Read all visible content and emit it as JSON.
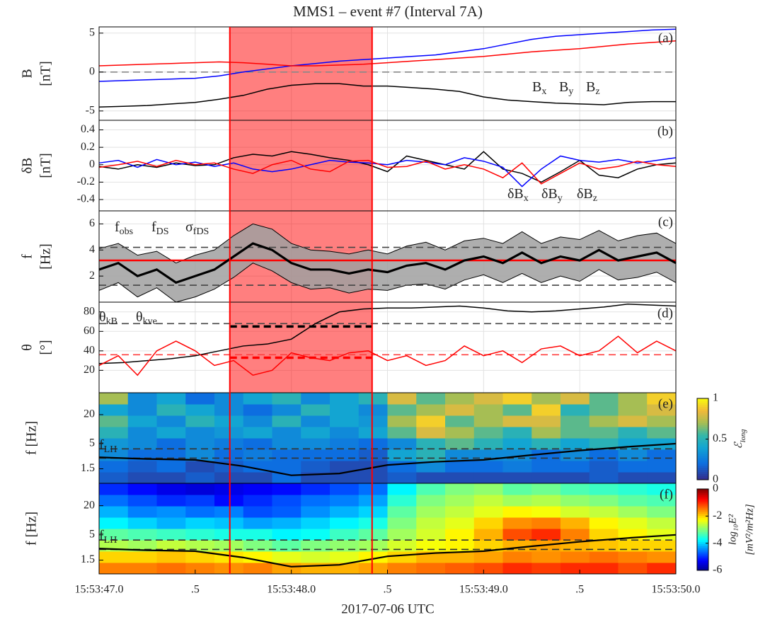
{
  "figure": {
    "title": "MMS1 – event #7 (Interval 7A)",
    "xlabel": "2017-07-06 UTC",
    "xlim": [
      47,
      50
    ],
    "xticks": [
      {
        "value": 47,
        "label": "15:53:47.0"
      },
      {
        "value": 47.5,
        "label": ".5"
      },
      {
        "value": 48,
        "label": "15:53:48.0"
      },
      {
        "value": 48.5,
        "label": ".5"
      },
      {
        "value": 49,
        "label": "15:53:49.0"
      },
      {
        "value": 49.5,
        "label": ".5"
      },
      {
        "value": 50,
        "label": "15:53:50.0"
      }
    ],
    "interval": [
      47.68,
      48.42
    ],
    "interval_color": "#ff0000"
  },
  "chart_data": [
    {
      "type": "line",
      "label": "(a)",
      "ylabel": [
        "B",
        "[nT]"
      ],
      "ylim": [
        -6.2,
        5.8
      ],
      "yticks": [
        -5,
        0,
        5
      ],
      "grid": true,
      "shaded": true,
      "reference_lines": [
        {
          "value": 0,
          "color": "#888888"
        }
      ],
      "x": [
        47,
        47.125,
        47.25,
        47.375,
        47.5,
        47.625,
        47.75,
        47.875,
        48,
        48.125,
        48.25,
        48.375,
        48.5,
        48.625,
        48.75,
        48.875,
        49,
        49.125,
        49.25,
        49.375,
        49.5,
        49.625,
        49.75,
        49.875,
        50
      ],
      "series": [
        {
          "name": "Bx",
          "color": "#000000",
          "values": [
            -4.5,
            -4.4,
            -4.3,
            -4.1,
            -3.9,
            -3.5,
            -3.0,
            -2.2,
            -1.7,
            -1.5,
            -1.5,
            -1.8,
            -1.8,
            -2.0,
            -2.2,
            -2.5,
            -3.2,
            -3.6,
            -3.8,
            -4.0,
            -4.1,
            -4.2,
            -3.9,
            -3.8,
            -3.8
          ]
        },
        {
          "name": "By",
          "color": "#0000ff",
          "values": [
            -1.2,
            -1.1,
            -1.0,
            -0.9,
            -0.8,
            -0.5,
            0,
            0.4,
            0.8,
            1.1,
            1.4,
            1.6,
            1.8,
            2.0,
            2.2,
            2.6,
            3.0,
            3.6,
            4.2,
            4.6,
            4.8,
            5.0,
            5.2,
            5.4,
            5.5
          ]
        },
        {
          "name": "Bz",
          "color": "#ff0000",
          "values": [
            0.8,
            0.9,
            1.0,
            1.1,
            1.2,
            1.3,
            1.2,
            1.0,
            0.8,
            0.8,
            0.9,
            1.0,
            1.2,
            1.4,
            1.6,
            1.8,
            2.0,
            2.3,
            2.6,
            2.8,
            3.0,
            3.3,
            3.6,
            3.8,
            4.0
          ]
        }
      ]
    },
    {
      "type": "line",
      "label": "(b)",
      "ylabel": [
        "δB",
        "[nT]"
      ],
      "ylim": [
        -0.53,
        0.51
      ],
      "yticks": [
        -0.4,
        -0.2,
        0,
        0.2,
        0.4
      ],
      "grid": true,
      "shaded": true,
      "x": [
        47,
        47.1,
        47.2,
        47.3,
        47.4,
        47.5,
        47.6,
        47.7,
        47.8,
        47.9,
        48,
        48.1,
        48.2,
        48.3,
        48.4,
        48.5,
        48.6,
        48.7,
        48.8,
        48.9,
        49,
        49.1,
        49.2,
        49.3,
        49.4,
        49.5,
        49.6,
        49.7,
        49.8,
        49.9,
        50
      ],
      "series": [
        {
          "name": "δBx",
          "color": "#000000",
          "values": [
            -0.02,
            -0.05,
            0.0,
            -0.03,
            0.02,
            -0.01,
            0.0,
            0.08,
            0.12,
            0.1,
            0.15,
            0.12,
            0.08,
            0.05,
            0.0,
            -0.08,
            0.1,
            0.05,
            0.0,
            -0.05,
            0.15,
            -0.05,
            -0.1,
            -0.2,
            -0.08,
            0.05,
            -0.12,
            -0.15,
            -0.05,
            0.0,
            0.02
          ]
        },
        {
          "name": "δBy",
          "color": "#0000ff",
          "values": [
            0.02,
            0.05,
            -0.03,
            0.06,
            0.0,
            0.03,
            -0.02,
            0.02,
            -0.05,
            -0.08,
            -0.05,
            0.0,
            0.05,
            0.03,
            0.02,
            0.0,
            0.05,
            0.03,
            0.0,
            0.08,
            0.04,
            -0.03,
            -0.25,
            -0.05,
            0.1,
            0.05,
            0.03,
            0.06,
            0.02,
            0.05,
            0.08
          ]
        },
        {
          "name": "δBz",
          "color": "#ff0000",
          "values": [
            -0.03,
            0.0,
            0.04,
            -0.02,
            0.05,
            0.0,
            0.02,
            -0.05,
            -0.1,
            0.0,
            0.05,
            -0.05,
            -0.08,
            0.04,
            0.05,
            -0.03,
            -0.02,
            0.04,
            -0.05,
            0.0,
            -0.05,
            -0.15,
            0.02,
            -0.22,
            -0.1,
            0.02,
            -0.05,
            -0.02,
            0.04,
            0.0,
            -0.02
          ]
        }
      ]
    },
    {
      "type": "line",
      "label": "(c)",
      "ylabel": [
        "f",
        "[Hz]"
      ],
      "ylim": [
        0,
        7
      ],
      "yticks": [
        2,
        4,
        6
      ],
      "grid": true,
      "shaded": true,
      "reference_lines": [
        {
          "value": 4.2,
          "color": "#444444"
        },
        {
          "value": 1.3,
          "color": "#444444"
        }
      ],
      "x": [
        47,
        47.1,
        47.2,
        47.3,
        47.4,
        47.5,
        47.6,
        47.7,
        47.8,
        47.9,
        48,
        48.1,
        48.2,
        48.3,
        48.4,
        48.5,
        48.6,
        48.7,
        48.8,
        48.9,
        49,
        49.1,
        49.2,
        49.3,
        49.4,
        49.5,
        49.6,
        49.7,
        49.8,
        49.9,
        50
      ],
      "series": [
        {
          "name": "fobs",
          "color": "#ff0000",
          "value": 3.2
        },
        {
          "name": "fDS",
          "color": "#000000",
          "values": [
            2.5,
            3.0,
            2.0,
            2.5,
            1.5,
            2.0,
            2.5,
            3.5,
            4.5,
            4.0,
            3.0,
            2.5,
            2.5,
            2.2,
            2.5,
            2.3,
            2.8,
            3.0,
            2.5,
            3.2,
            3.5,
            3.0,
            3.8,
            3.0,
            3.5,
            3.2,
            4.0,
            3.2,
            3.5,
            3.8,
            3.0
          ]
        },
        {
          "name": "σfDS",
          "color": "#a0a0a0",
          "around": 1,
          "values": [
            1.6,
            1.5,
            1.6,
            1.4,
            1.5,
            1.6,
            1.5,
            1.6,
            1.5,
            1.6,
            1.5,
            1.5,
            1.4,
            1.5,
            1.5,
            1.4,
            1.5,
            1.6,
            1.5,
            1.5,
            1.4,
            1.5,
            1.6,
            1.5,
            1.5,
            1.6,
            1.5,
            1.5,
            1.6,
            1.5,
            1.5
          ]
        }
      ]
    },
    {
      "type": "line",
      "label": "(d)",
      "ylabel": [
        "θ",
        "[°]"
      ],
      "ylim": [
        -3,
        90
      ],
      "yticks": [
        20,
        40,
        60,
        80
      ],
      "grid": true,
      "shaded": true,
      "reference_lines": [
        {
          "value": 68,
          "color": "#444444"
        },
        {
          "value": 36,
          "color": "#ff4040"
        },
        {
          "value": 65,
          "color": "#000000",
          "interval": true
        },
        {
          "value": 33,
          "color": "#ff0000",
          "interval": true
        }
      ],
      "x": [
        47,
        47.1,
        47.2,
        47.3,
        47.4,
        47.5,
        47.6,
        47.7,
        47.8,
        47.9,
        48,
        48.1,
        48.2,
        48.3,
        48.4,
        48.5,
        48.6,
        48.7,
        48.8,
        48.9,
        49,
        49.1,
        49.2,
        49.3,
        49.4,
        49.5,
        49.6,
        49.7,
        49.8,
        49.9,
        50
      ],
      "series": [
        {
          "name": "θkB",
          "color": "#000000",
          "x": [
            47,
            47.125,
            47.25,
            47.375,
            47.5,
            47.625,
            47.75,
            47.875,
            48,
            48.125,
            48.25,
            48.375,
            48.5,
            48.625,
            48.75,
            48.875,
            49,
            49.125,
            49.25,
            49.375,
            49.5,
            49.625,
            49.75,
            49.875,
            50
          ],
          "values": [
            27,
            28,
            30,
            32,
            35,
            40,
            45,
            47,
            52,
            68,
            80,
            83,
            84,
            84,
            85,
            86,
            84,
            81,
            80,
            81,
            83,
            85,
            88,
            87,
            86
          ]
        },
        {
          "name": "θkve",
          "color": "#ff0000",
          "values": [
            25,
            35,
            15,
            40,
            50,
            40,
            25,
            30,
            15,
            20,
            38,
            33,
            30,
            38,
            40,
            30,
            35,
            25,
            30,
            45,
            35,
            40,
            28,
            42,
            45,
            35,
            40,
            55,
            38,
            50,
            40
          ]
        }
      ]
    },
    {
      "type": "heatmap",
      "label": "(e)",
      "ylabel": [
        "f [Hz]"
      ],
      "ylim": [
        0.75,
        57
      ],
      "log_y": true,
      "yticks": [
        1.5,
        5,
        20
      ],
      "colormap": "parula",
      "colorbar": {
        "label": [
          "ℰlong"
        ],
        "lim": [
          0,
          1
        ],
        "ticks": [
          0,
          0.5,
          1
        ]
      },
      "reference_lines": [
        {
          "value": 3.9,
          "color": "#333333"
        },
        {
          "value": 2.5,
          "color": "#333333"
        }
      ],
      "z": [
        [
          0.15,
          0.1,
          0.1,
          0.15,
          0.1,
          0.1,
          0.2,
          0.1,
          0.1,
          0.1,
          0.15,
          0.1,
          0.1,
          0.1,
          0.1,
          0.1,
          0.1,
          0.15,
          0.1,
          0.1
        ],
        [
          0.2,
          0.15,
          0.2,
          0.1,
          0.15,
          0.2,
          0.2,
          0.15,
          0.1,
          0.1,
          0.2,
          0.3,
          0.2,
          0.2,
          0.25,
          0.2,
          0.2,
          0.15,
          0.2,
          0.2
        ],
        [
          0.3,
          0.2,
          0.2,
          0.3,
          0.2,
          0.25,
          0.2,
          0.2,
          0.2,
          0.15,
          0.4,
          0.5,
          0.3,
          0.3,
          0.3,
          0.2,
          0.3,
          0.2,
          0.3,
          0.2
        ],
        [
          0.35,
          0.3,
          0.2,
          0.3,
          0.25,
          0.2,
          0.3,
          0.3,
          0.25,
          0.2,
          0.3,
          0.5,
          0.6,
          0.5,
          0.4,
          0.5,
          0.4,
          0.5,
          0.4,
          0.4
        ],
        [
          0.5,
          0.3,
          0.4,
          0.3,
          0.35,
          0.4,
          0.3,
          0.4,
          0.3,
          0.4,
          0.6,
          0.8,
          0.7,
          0.6,
          0.5,
          0.7,
          0.6,
          0.6,
          0.5,
          0.6
        ],
        [
          0.6,
          0.4,
          0.3,
          0.5,
          0.4,
          0.3,
          0.5,
          0.3,
          0.4,
          0.35,
          0.7,
          0.9,
          0.6,
          0.7,
          0.8,
          0.8,
          0.6,
          0.7,
          0.8,
          0.7
        ],
        [
          0.4,
          0.3,
          0.5,
          0.4,
          0.3,
          0.2,
          0.3,
          0.5,
          0.4,
          0.3,
          0.6,
          0.7,
          0.8,
          0.7,
          0.6,
          0.9,
          0.5,
          0.6,
          0.7,
          0.8
        ],
        [
          0.7,
          0.3,
          0.4,
          0.2,
          0.3,
          0.4,
          0.5,
          0.3,
          0.4,
          0.5,
          0.8,
          0.6,
          0.7,
          0.8,
          0.9,
          0.7,
          0.8,
          0.6,
          0.7,
          0.9
        ]
      ],
      "series": [
        {
          "name": "fLH",
          "color": "#000000",
          "x": [
            47,
            47.25,
            47.5,
            47.75,
            48,
            48.25,
            48.5,
            48.75,
            49,
            49.25,
            49.5,
            49.75,
            50
          ],
          "values": [
            2.6,
            2.4,
            2.3,
            1.7,
            1.1,
            1.2,
            1.8,
            2.1,
            2.3,
            2.9,
            3.6,
            4.3,
            5.0
          ]
        }
      ]
    },
    {
      "type": "heatmap",
      "label": "(f)",
      "ylabel": [
        "f [Hz]"
      ],
      "ylim": [
        0.78,
        58
      ],
      "log_y": true,
      "yticks": [
        1.5,
        5,
        20
      ],
      "colormap": "jet",
      "colorbar": {
        "label": [
          "log₁₀E²",
          "[mV²/m²Hz]"
        ],
        "lim": [
          -6,
          0
        ],
        "ticks": [
          0,
          -2,
          -4,
          -6
        ]
      },
      "reference_lines": [
        {
          "value": 3.9,
          "color": "#333333"
        },
        {
          "value": 2.5,
          "color": "#333333"
        }
      ],
      "z": [
        [
          -1.5,
          -1.5,
          -1.4,
          -1.5,
          -1.6,
          -1.5,
          -1.7,
          -1.8,
          -1.8,
          -1.7,
          -1.5,
          -1.4,
          -1.3,
          -1.2,
          -1.0,
          -1.1,
          -1.0,
          -1.0,
          -1.2,
          -1.0
        ],
        [
          -2.0,
          -2.0,
          -1.9,
          -2.0,
          -2.1,
          -2.2,
          -2.4,
          -2.5,
          -2.4,
          -2.2,
          -2.0,
          -1.8,
          -1.8,
          -1.7,
          -1.5,
          -1.6,
          -1.5,
          -1.4,
          -1.5,
          -1.6
        ],
        [
          -2.7,
          -2.8,
          -2.6,
          -2.7,
          -2.8,
          -3.0,
          -3.2,
          -3.0,
          -2.9,
          -2.8,
          -2.5,
          -2.3,
          -2.2,
          -2.0,
          -1.8,
          -1.7,
          -1.8,
          -1.9,
          -2.0,
          -2.0
        ],
        [
          -3.2,
          -3.3,
          -3.4,
          -3.5,
          -3.6,
          -3.6,
          -3.8,
          -3.7,
          -3.4,
          -3.2,
          -2.8,
          -2.5,
          -2.2,
          -1.8,
          -1.2,
          -1.0,
          -1.5,
          -2.0,
          -2.2,
          -2.4
        ],
        [
          -3.8,
          -4.0,
          -4.2,
          -4.0,
          -4.1,
          -4.3,
          -4.2,
          -4.0,
          -3.8,
          -3.6,
          -3.0,
          -2.6,
          -2.4,
          -2.0,
          -1.6,
          -1.5,
          -1.8,
          -2.2,
          -2.4,
          -2.6
        ],
        [
          -4.2,
          -4.5,
          -4.4,
          -4.6,
          -4.5,
          -4.8,
          -4.7,
          -4.4,
          -4.2,
          -4.0,
          -3.2,
          -2.8,
          -2.6,
          -2.4,
          -2.2,
          -2.3,
          -2.5,
          -2.6,
          -2.8,
          -3.0
        ],
        [
          -4.6,
          -4.8,
          -5.0,
          -4.9,
          -5.2,
          -5.0,
          -4.8,
          -4.6,
          -4.5,
          -4.3,
          -3.5,
          -3.0,
          -2.8,
          -2.6,
          -2.8,
          -2.7,
          -2.9,
          -3.0,
          -3.2,
          -3.3
        ],
        [
          -5.0,
          -5.2,
          -5.4,
          -5.5,
          -5.4,
          -5.3,
          -5.2,
          -5.0,
          -4.8,
          -4.6,
          -3.8,
          -3.3,
          -3.0,
          -2.9,
          -3.2,
          -3.1,
          -3.3,
          -3.4,
          -3.5,
          -3.6
        ]
      ],
      "series": [
        {
          "name": "fLH",
          "color": "#000000",
          "x": [
            47,
            47.25,
            47.5,
            47.75,
            48,
            48.25,
            48.5,
            48.75,
            49,
            49.25,
            49.5,
            49.75,
            50
          ],
          "values": [
            2.6,
            2.4,
            2.3,
            1.7,
            1.1,
            1.2,
            1.8,
            2.1,
            2.3,
            2.9,
            3.6,
            4.3,
            5.0
          ]
        }
      ]
    }
  ]
}
